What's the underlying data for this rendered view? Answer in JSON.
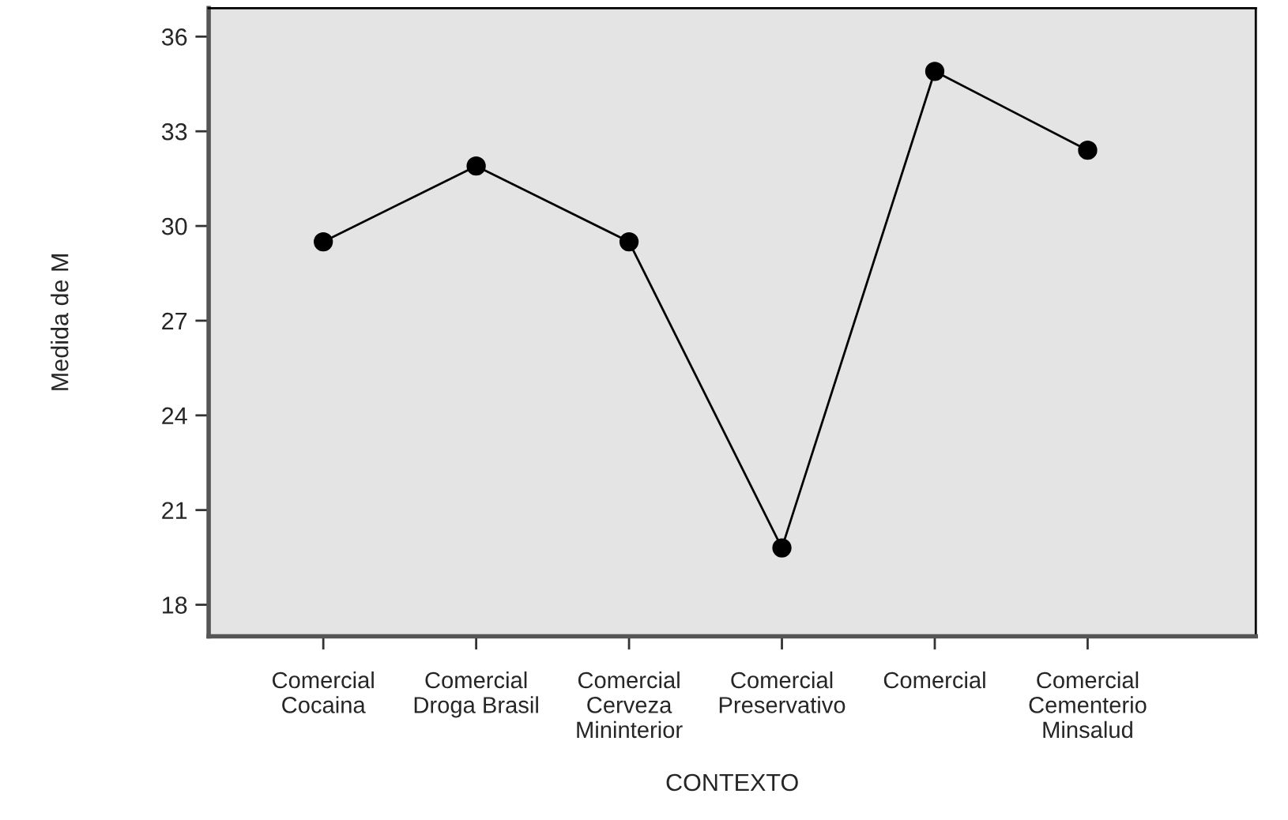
{
  "chart_data": {
    "type": "line",
    "categories": [
      "Comercial Cocaina",
      "Comercial Droga Brasil",
      "Comercial Cerveza Mininterior",
      "Comercial Preservativo",
      "Comercial",
      "Comercial Cementerio Minsalud"
    ],
    "series": [
      {
        "color": "#000000",
        "values": [
          29.5,
          31.9,
          29.5,
          19.8,
          34.9,
          32.4
        ]
      }
    ],
    "xlabel": "CONTEXTO",
    "ylabel": "Medida de M",
    "ylim": [
      17,
      36.9
    ],
    "yticks": [
      18,
      21,
      24,
      27,
      30,
      33,
      36
    ],
    "grid": false,
    "legend": false,
    "marker": "circle",
    "line_style": "solid"
  }
}
